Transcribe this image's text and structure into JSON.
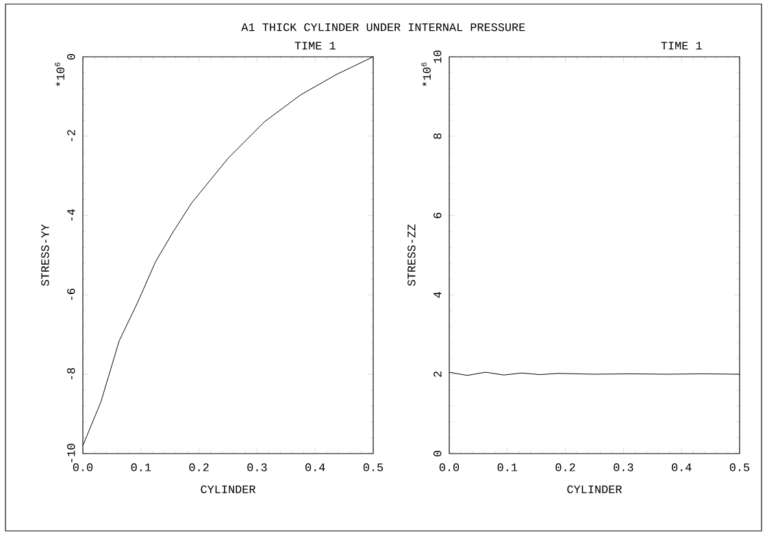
{
  "chart_data": [
    {
      "type": "line",
      "title": "A1  THICK CYLINDER UNDER INTERNAL PRESSURE",
      "subtitle": "TIME 1",
      "xlabel": "CYLINDER",
      "ylabel": "STRESS-YY",
      "annotations": [
        "*10$^{6}$"
      ],
      "x": [
        0,
        0.031,
        0.0625,
        0.094,
        0.125,
        0.156,
        0.1875,
        0.25,
        0.3125,
        0.375,
        0.4375,
        0.5
      ],
      "values": [
        -9.8,
        -8.7,
        -7.16,
        -6.2,
        -5.17,
        -4.4,
        -3.68,
        -2.56,
        -1.64,
        -0.96,
        -0.44,
        0
      ],
      "color": "#000000",
      "xlim": [
        0,
        0.5
      ],
      "ylim": [
        -10,
        0
      ],
      "xticks": [
        {
          "value": 0,
          "label": "0.0"
        },
        {
          "value": 0.1,
          "label": "0.1"
        },
        {
          "value": 0.2,
          "label": "0.2"
        },
        {
          "value": 0.3,
          "label": "0.3"
        },
        {
          "value": 0.4,
          "label": "0.4"
        },
        {
          "value": 0.5,
          "label": "0.5"
        }
      ],
      "yticks": [
        -10,
        -8,
        -6,
        -4,
        -2,
        0
      ]
    },
    {
      "type": "line",
      "subtitle": "TIME 1",
      "xlabel": "CYLINDER",
      "ylabel": "STRESS-ZZ",
      "annotations": [
        "*10$^{6}$"
      ],
      "x": [
        0,
        0.031,
        0.0625,
        0.094,
        0.125,
        0.156,
        0.1875,
        0.25,
        0.3125,
        0.375,
        0.4375,
        0.5
      ],
      "values": [
        2.05,
        1.97,
        2.05,
        1.98,
        2.03,
        1.99,
        2.02,
        2.0,
        2.01,
        2.0,
        2.01,
        2.0
      ],
      "color": "#000000",
      "xlim": [
        0,
        0.5
      ],
      "ylim": [
        0,
        10
      ],
      "xticks": [
        {
          "value": 0,
          "label": "0.0"
        },
        {
          "value": 0.1,
          "label": "0.1"
        },
        {
          "value": 0.2,
          "label": "0.2"
        },
        {
          "value": 0.3,
          "label": "0.3"
        },
        {
          "value": 0.4,
          "label": "0.4"
        },
        {
          "value": 0.5,
          "label": "0.5"
        }
      ],
      "yticks": [
        0,
        2,
        4,
        6,
        8,
        10
      ]
    }
  ]
}
